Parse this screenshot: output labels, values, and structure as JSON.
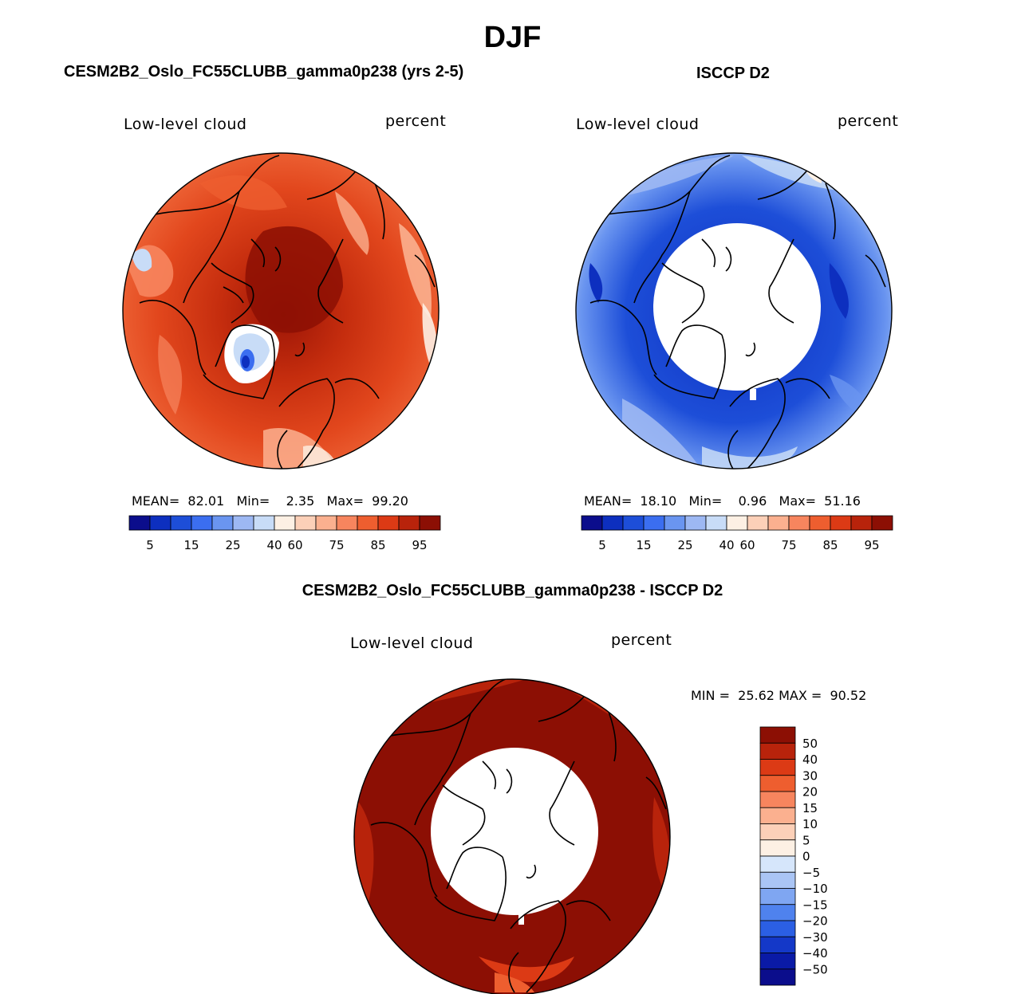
{
  "figure": {
    "title": "DJF",
    "panels": [
      {
        "title": "CESM2B2_Oslo_FC55CLUBB_gamma0p238 (yrs 2-5)",
        "variable": "Low-level cloud",
        "units": "percent",
        "stats": {
          "mean": "82.01",
          "min": "2.35",
          "max": "99.20"
        },
        "stats_labels": {
          "mean": "MEAN=",
          "min": "Min=",
          "max": "Max="
        }
      },
      {
        "title": "ISCCP D2",
        "variable": "Low-level cloud",
        "units": "percent",
        "stats": {
          "mean": "18.10",
          "min": "0.96",
          "max": "51.16"
        },
        "stats_labels": {
          "mean": "MEAN=",
          "min": "Min=",
          "max": "Max="
        }
      },
      {
        "title": "CESM2B2_Oslo_FC55CLUBB_gamma0p238 - ISCCP D2",
        "variable": "Low-level cloud",
        "units": "percent",
        "stats": {
          "min": "25.62",
          "max": "90.52"
        },
        "stats_labels": {
          "min": "MIN =",
          "max": "MAX ="
        }
      }
    ]
  },
  "colors": {
    "abs_palette": [
      "#0b0d8c",
      "#0d2fbf",
      "#1d4ed8",
      "#3b6ef0",
      "#6a95f0",
      "#9db8f3",
      "#c8dcf7",
      "#fdf0e4",
      "#fcd0b8",
      "#fbb08f",
      "#f7855e",
      "#ee5e2f",
      "#dc3a15",
      "#b8230b",
      "#8c0f04"
    ],
    "diff_palette": [
      "#8c0f04",
      "#b8230b",
      "#dc3a15",
      "#ee5e2f",
      "#f7855e",
      "#fbb08f",
      "#fcd0b8",
      "#fdf0e4",
      "#d6e6fb",
      "#aac5f5",
      "#7fa6f2",
      "#4f82ee",
      "#2b5fe4",
      "#1438c8",
      "#0a1aa6",
      "#0b0d8c"
    ]
  },
  "colorbars": {
    "absolute": {
      "tick_labels": [
        "5",
        "15",
        "25",
        "40",
        "60",
        "75",
        "85",
        "95"
      ]
    },
    "difference": {
      "tick_labels": [
        "50",
        "40",
        "30",
        "20",
        "15",
        "10",
        "5",
        "0",
        "−5",
        "−10",
        "−15",
        "−20",
        "−30",
        "−40",
        "−50"
      ]
    }
  }
}
